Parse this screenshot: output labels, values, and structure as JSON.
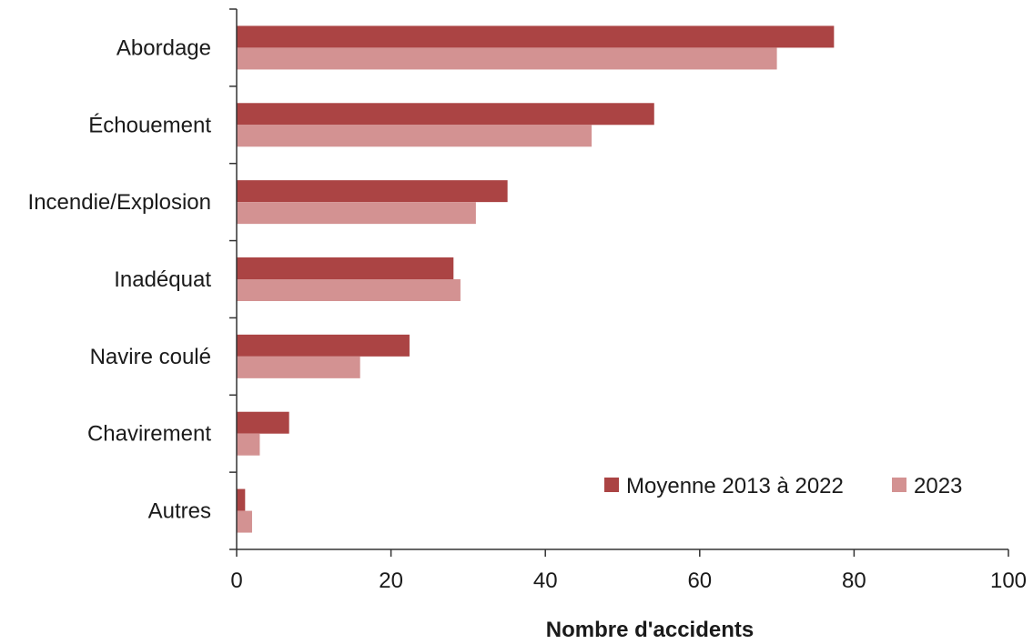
{
  "chart_data": {
    "type": "bar",
    "orientation": "horizontal",
    "categories": [
      "Abordage",
      "Échouement",
      "Incendie/Explosion",
      "Inadéquat",
      "Navire coulé",
      "Chavirement",
      "Autres"
    ],
    "series": [
      {
        "name": "Moyenne 2013 à 2022",
        "color": "#ab4444",
        "values": [
          77.4,
          54.1,
          35.1,
          28.1,
          22.4,
          6.8,
          1.1
        ]
      },
      {
        "name": "2023",
        "color": "#d39292",
        "values": [
          70,
          46,
          31,
          29,
          16,
          3,
          2
        ]
      }
    ],
    "xlabel": "Nombre d'accidents",
    "ylabel": "",
    "title": "",
    "xlim": [
      0,
      100
    ],
    "xticks": [
      "0",
      "20",
      "40",
      "60",
      "80",
      "100"
    ],
    "xtick_values": [
      0,
      20,
      40,
      60,
      80,
      100
    ],
    "grid": false,
    "legend_position": "bottom-right"
  }
}
